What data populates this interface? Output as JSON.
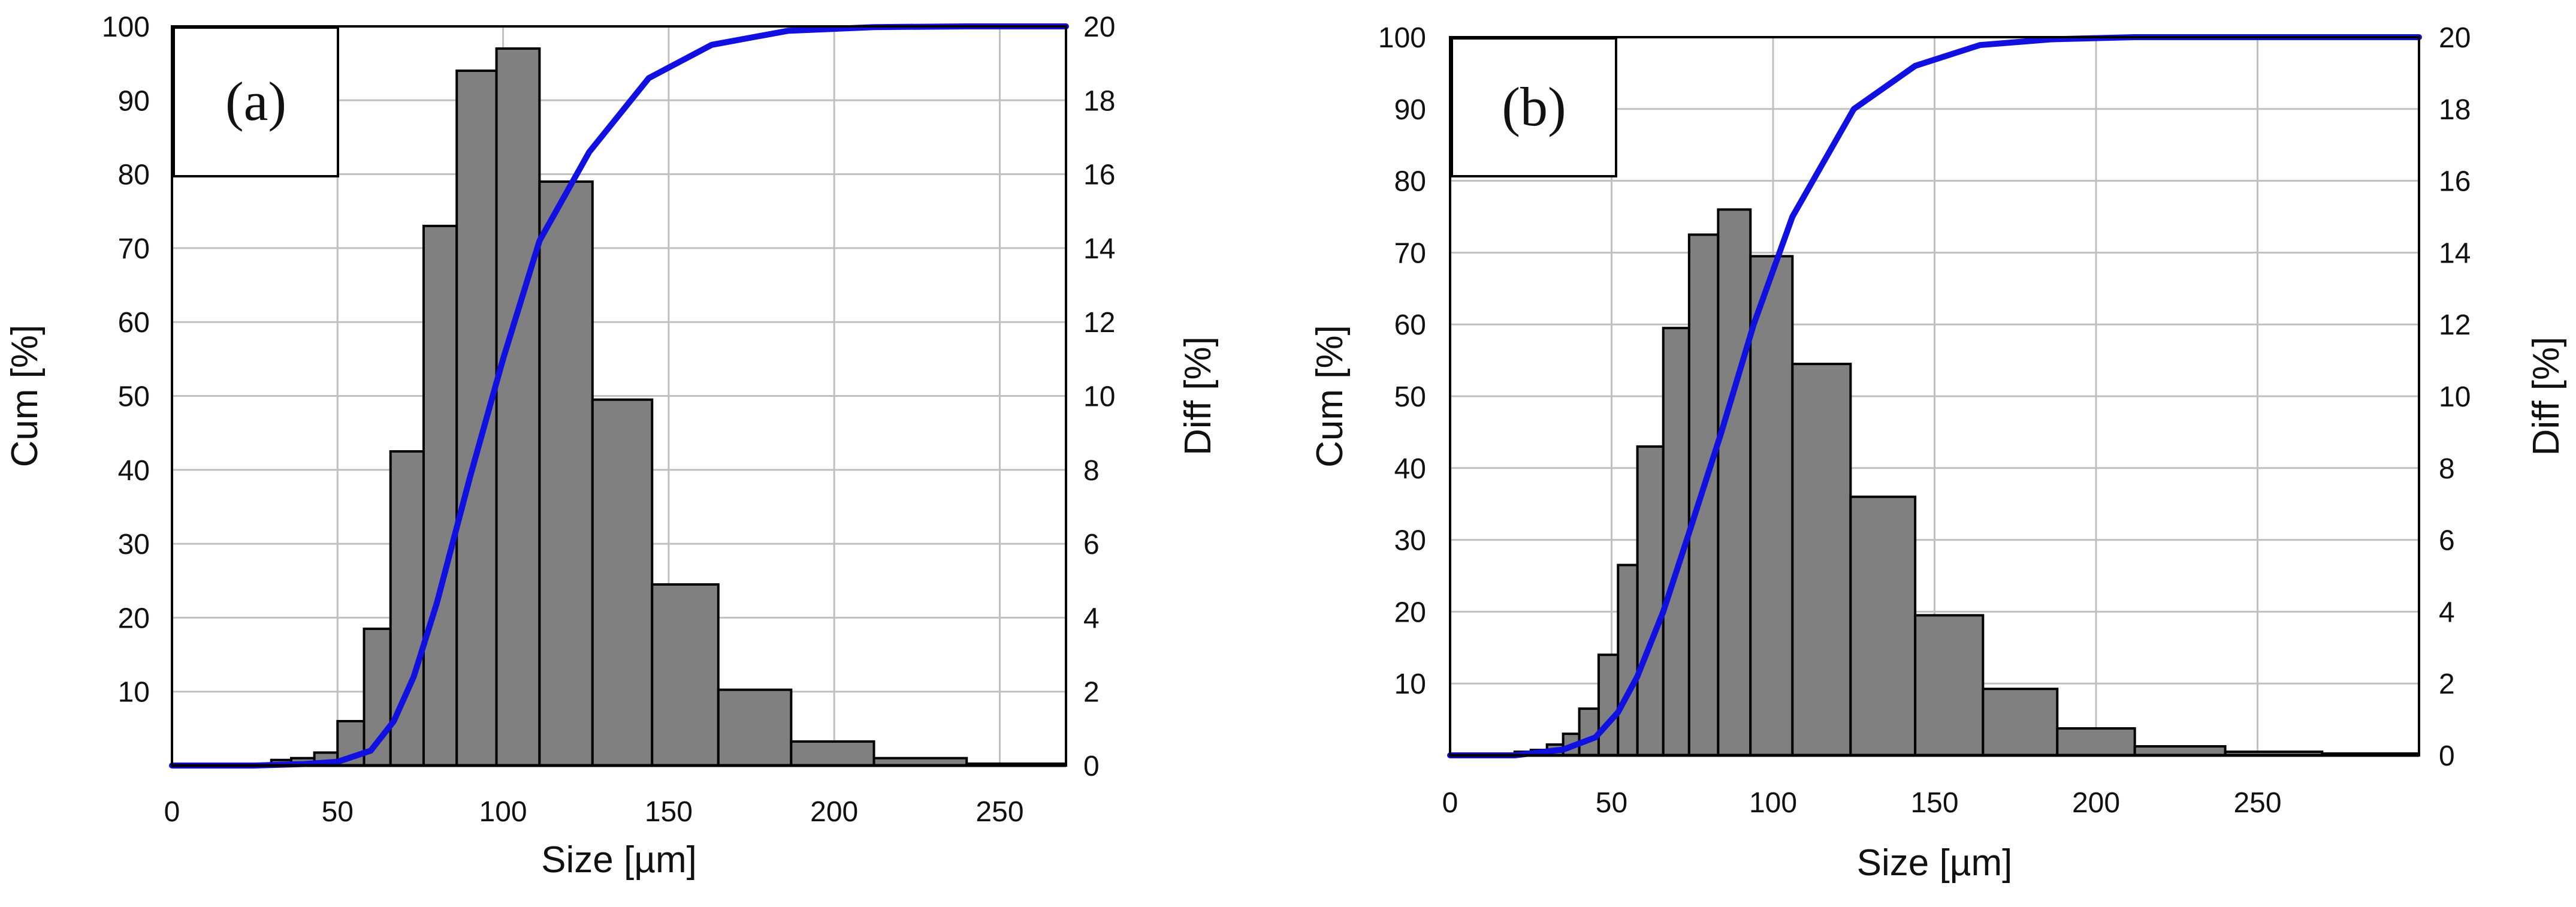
{
  "figure": {
    "colors": {
      "bar_fill": "#808080",
      "bar_edge": "#000000",
      "curve": "#1010e0",
      "grid": "#c0c0c0"
    }
  },
  "chart_data": [
    {
      "type": "bar",
      "panel_label": "(a)",
      "xlabel": "Size [µm]",
      "ylabel_left": "Cum [%]",
      "ylabel_right": "Diff [%]",
      "xlim": [
        0,
        270
      ],
      "xticks": [
        0,
        50,
        100,
        150,
        200,
        250
      ],
      "ylim_left": [
        0,
        100
      ],
      "yticks_left": [
        10,
        20,
        30,
        40,
        50,
        60,
        70,
        80,
        90,
        100
      ],
      "ylim_right": [
        0,
        20
      ],
      "yticks_right": [
        0,
        2,
        4,
        6,
        8,
        10,
        12,
        14,
        16,
        18,
        20
      ],
      "grid": true,
      "series": [
        {
          "axis": "right",
          "type": "histogram",
          "bins": [
            [
              30,
              36,
              0.15
            ],
            [
              36,
              43,
              0.2
            ],
            [
              43,
              50,
              0.35
            ],
            [
              50,
              58,
              1.2
            ],
            [
              58,
              66,
              3.7
            ],
            [
              66,
              76,
              8.5
            ],
            [
              76,
              86,
              14.6
            ],
            [
              86,
              98,
              18.8
            ],
            [
              98,
              111,
              19.4
            ],
            [
              111,
              127,
              15.8
            ],
            [
              127,
              145,
              9.9
            ],
            [
              145,
              165,
              4.9
            ],
            [
              165,
              187,
              2.05
            ],
            [
              187,
              212,
              0.65
            ],
            [
              212,
              240,
              0.2
            ],
            [
              240,
              270,
              0.05
            ]
          ]
        },
        {
          "axis": "left",
          "type": "line",
          "x": [
            0,
            25,
            40,
            50,
            60,
            67,
            73,
            80,
            90,
            100,
            111,
            126,
            144,
            163,
            186,
            212,
            240,
            270
          ],
          "y": [
            0,
            0,
            0.2,
            0.5,
            2,
            6,
            12,
            22,
            39,
            55,
            71,
            83,
            93,
            97.5,
            99.4,
            99.9,
            100,
            100
          ]
        }
      ]
    },
    {
      "type": "bar",
      "panel_label": "(b)",
      "xlabel": "Size [µm]",
      "ylabel_left": "Cum [%]",
      "ylabel_right": "Diff [%]",
      "xlim": [
        0,
        300
      ],
      "xticks": [
        0,
        50,
        100,
        150,
        200,
        250
      ],
      "ylim_left": [
        0,
        100
      ],
      "yticks_left": [
        10,
        20,
        30,
        40,
        50,
        60,
        70,
        80,
        90,
        100
      ],
      "ylim_right": [
        0,
        20
      ],
      "yticks_right": [
        0,
        2,
        4,
        6,
        8,
        10,
        12,
        14,
        16,
        18,
        20
      ],
      "grid": true,
      "series": [
        {
          "axis": "right",
          "type": "histogram",
          "bins": [
            [
              20,
              25,
              0.1
            ],
            [
              25,
              30,
              0.15
            ],
            [
              30,
              35,
              0.3
            ],
            [
              35,
              40,
              0.6
            ],
            [
              40,
              46,
              1.3
            ],
            [
              46,
              52,
              2.8
            ],
            [
              52,
              58,
              5.3
            ],
            [
              58,
              66,
              8.6
            ],
            [
              66,
              74,
              11.9
            ],
            [
              74,
              83,
              14.5
            ],
            [
              83,
              93,
              15.2
            ],
            [
              93,
              106,
              13.9
            ],
            [
              106,
              124,
              10.9
            ],
            [
              124,
              144,
              7.2
            ],
            [
              144,
              165,
              3.9
            ],
            [
              165,
              188,
              1.85
            ],
            [
              188,
              212,
              0.75
            ],
            [
              212,
              240,
              0.25
            ],
            [
              240,
              270,
              0.1
            ],
            [
              270,
              300,
              0.05
            ]
          ]
        },
        {
          "axis": "left",
          "type": "line",
          "x": [
            0,
            20,
            35,
            45,
            52,
            58,
            66,
            74,
            84,
            94,
            106,
            125,
            144,
            164,
            186,
            212,
            245,
            300
          ],
          "y": [
            0,
            0,
            0.8,
            2.5,
            6,
            11,
            20,
            31,
            45,
            60,
            75,
            90,
            96,
            98.9,
            99.7,
            100,
            100,
            100
          ]
        }
      ]
    }
  ]
}
